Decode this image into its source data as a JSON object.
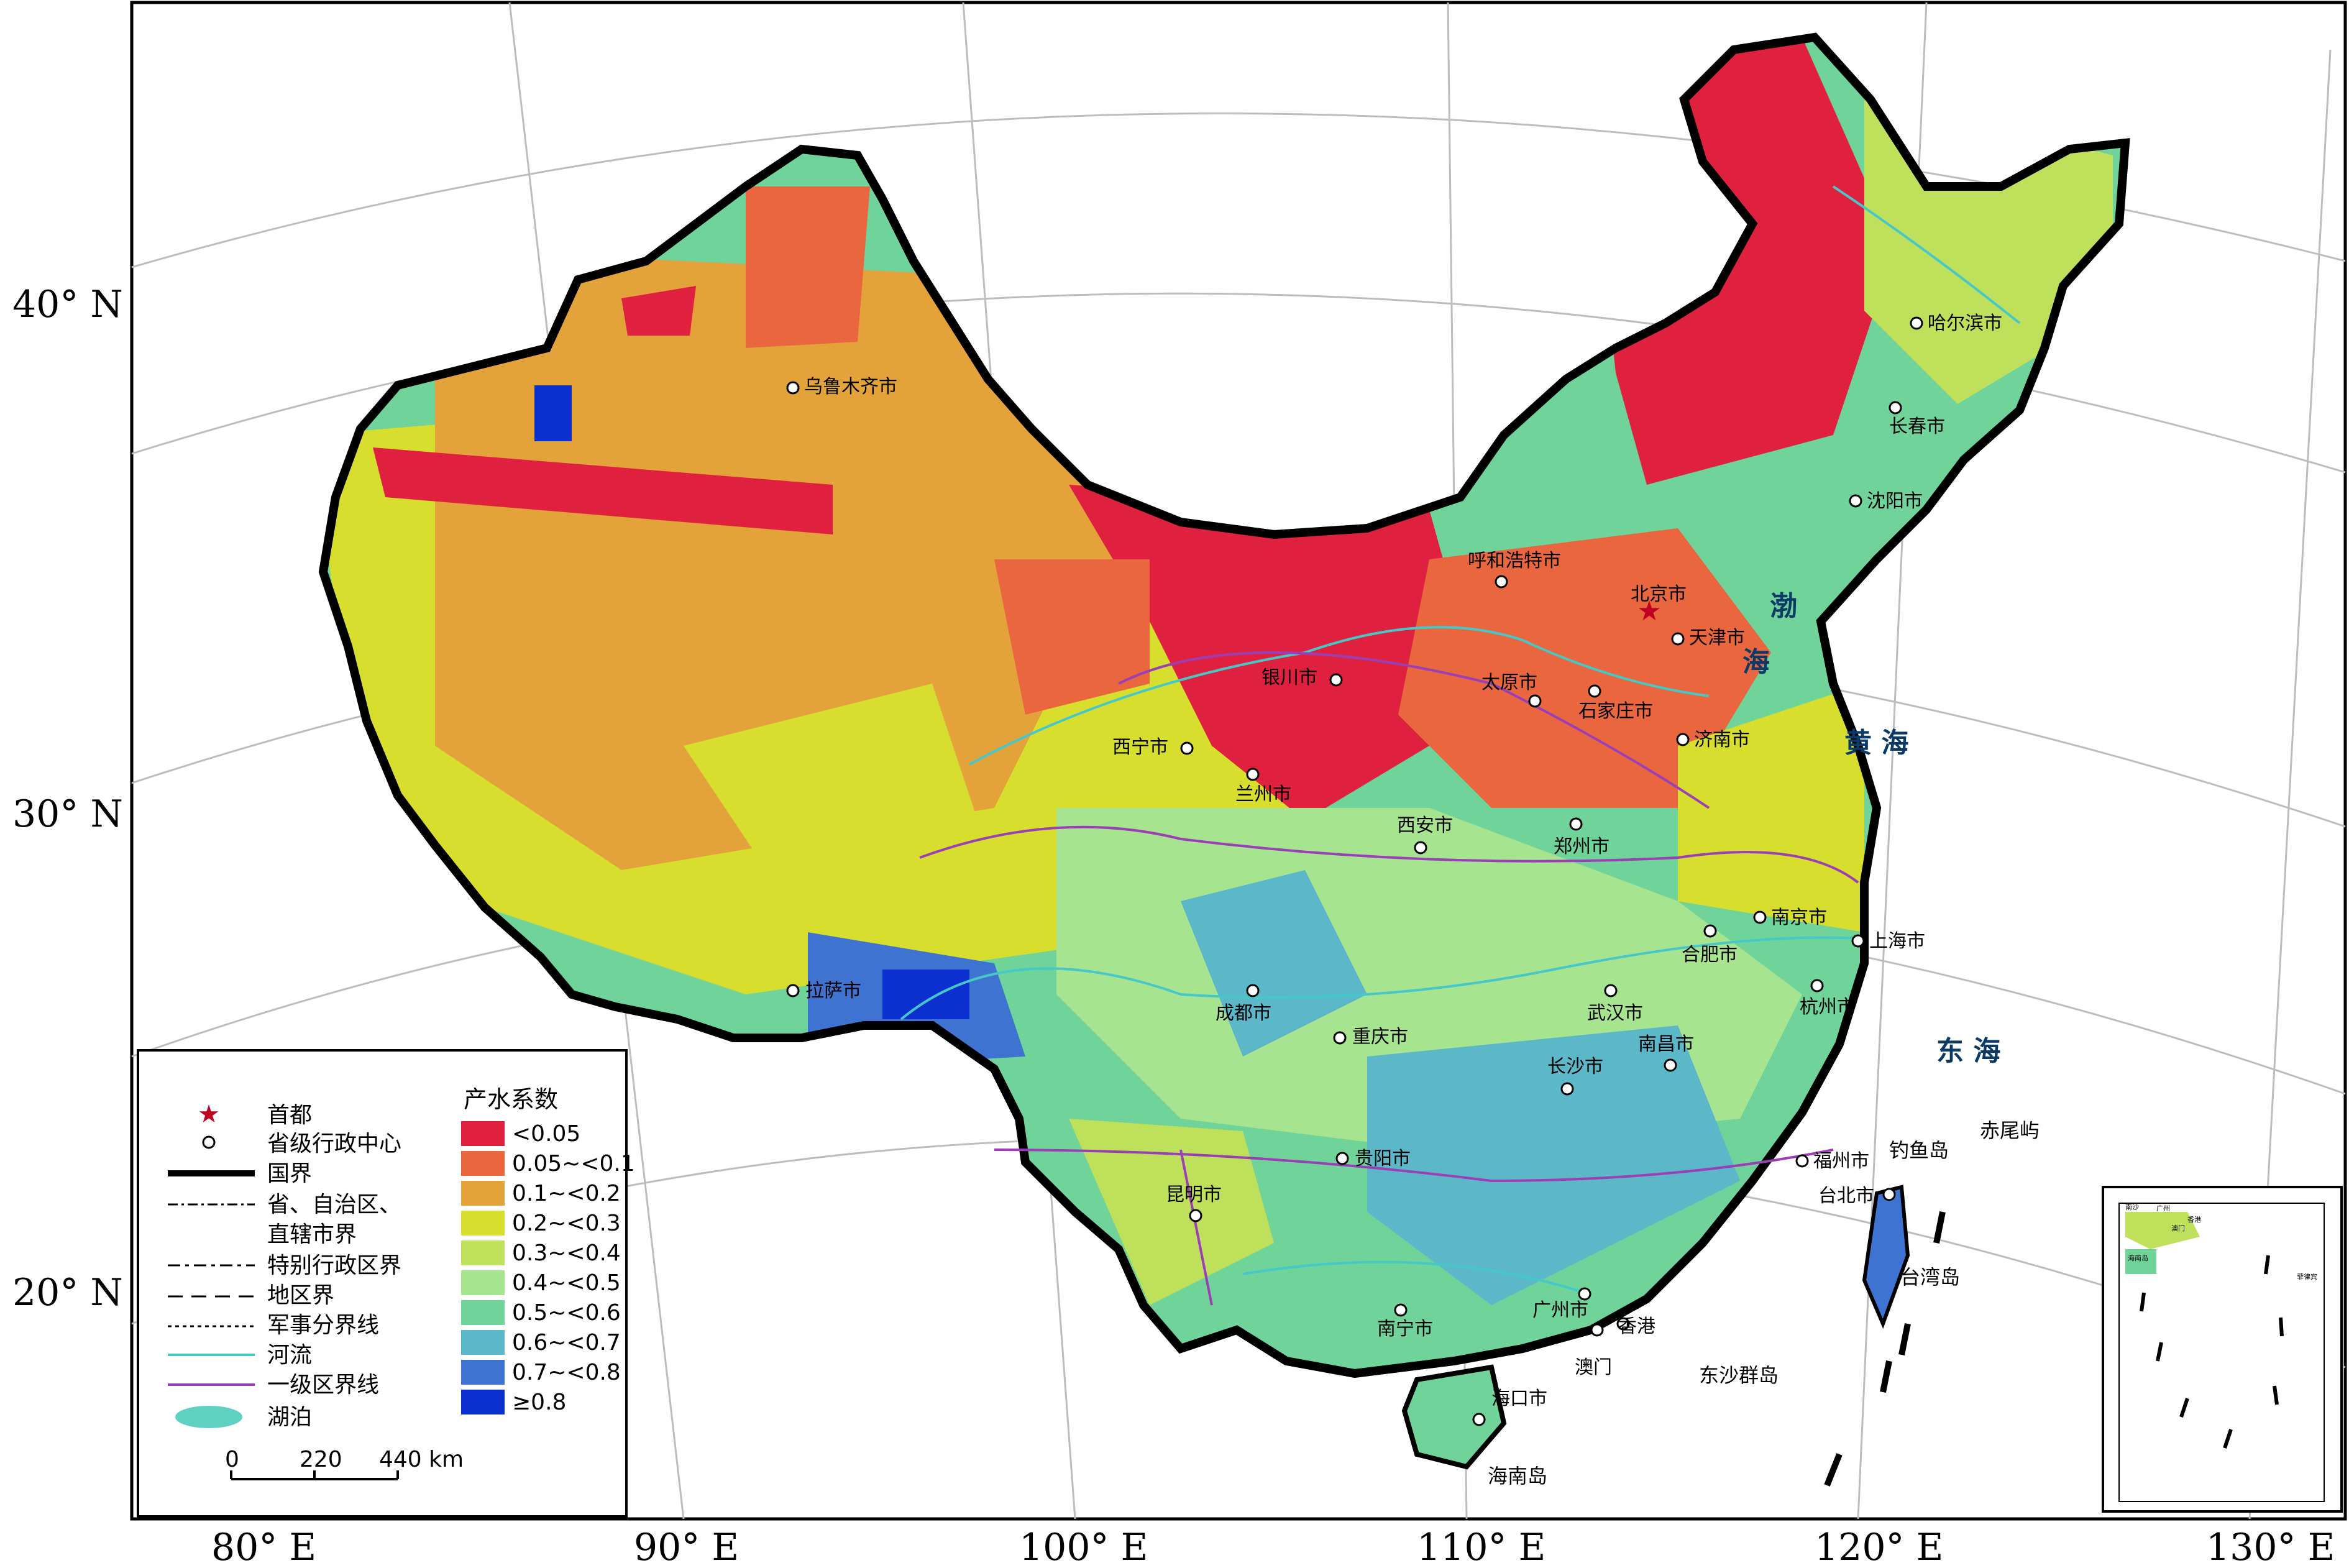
{
  "axes": {
    "lat_labels": [
      "40° N",
      "30° N",
      "20° N"
    ],
    "lon_labels": [
      "80° E",
      "90° E",
      "100° E",
      "110° E",
      "120° E",
      "130° E"
    ]
  },
  "cities": [
    {
      "id": "urumqi",
      "name": "乌鲁木齐市"
    },
    {
      "id": "harbin",
      "name": "哈尔滨市"
    },
    {
      "id": "changchun",
      "name": "长春市"
    },
    {
      "id": "shenyang",
      "name": "沈阳市"
    },
    {
      "id": "hohhot",
      "name": "呼和浩特市"
    },
    {
      "id": "beijing",
      "name": "北京市"
    },
    {
      "id": "tianjin",
      "name": "天津市"
    },
    {
      "id": "yinchuan",
      "name": "银川市"
    },
    {
      "id": "taiyuan",
      "name": "太原市"
    },
    {
      "id": "shijiazhuang",
      "name": "石家庄市"
    },
    {
      "id": "jinan",
      "name": "济南市"
    },
    {
      "id": "xining",
      "name": "西宁市"
    },
    {
      "id": "lanzhou",
      "name": "兰州市"
    },
    {
      "id": "xian",
      "name": "西安市"
    },
    {
      "id": "zhengzhou",
      "name": "郑州市"
    },
    {
      "id": "nanjing",
      "name": "南京市"
    },
    {
      "id": "shanghai",
      "name": "上海市"
    },
    {
      "id": "hefei",
      "name": "合肥市"
    },
    {
      "id": "lhasa",
      "name": "拉萨市"
    },
    {
      "id": "chengdu",
      "name": "成都市"
    },
    {
      "id": "wuhan",
      "name": "武汉市"
    },
    {
      "id": "hangzhou",
      "name": "杭州市"
    },
    {
      "id": "chongqing",
      "name": "重庆市"
    },
    {
      "id": "nanchang",
      "name": "南昌市"
    },
    {
      "id": "changsha",
      "name": "长沙市"
    },
    {
      "id": "guiyang",
      "name": "贵阳市"
    },
    {
      "id": "fuzhou",
      "name": "福州市"
    },
    {
      "id": "taipei",
      "name": "台北市"
    },
    {
      "id": "kunming",
      "name": "昆明市"
    },
    {
      "id": "nanning",
      "name": "南宁市"
    },
    {
      "id": "guangzhou",
      "name": "广州市"
    },
    {
      "id": "hongkong",
      "name": "香港"
    },
    {
      "id": "macau",
      "name": "澳门"
    },
    {
      "id": "haikou",
      "name": "海口市"
    }
  ],
  "seas": [
    {
      "id": "bohai-1",
      "name": "渤"
    },
    {
      "id": "bohai-2",
      "name": "海"
    },
    {
      "id": "huanghai",
      "name": "黄 海"
    },
    {
      "id": "donghai",
      "name": "东 海"
    }
  ],
  "islands": [
    {
      "id": "diaoyu",
      "name": "钓鱼岛"
    },
    {
      "id": "chiwei",
      "name": "赤尾屿"
    },
    {
      "id": "taiwan",
      "name": "台湾岛"
    },
    {
      "id": "dongsha",
      "name": "东沙群岛"
    },
    {
      "id": "hainan",
      "name": "海南岛"
    }
  ],
  "legend": {
    "symbols": [
      {
        "id": "capital",
        "label": "首都"
      },
      {
        "id": "provincial-center",
        "label": "省级行政中心"
      },
      {
        "id": "national-border",
        "label": "国界"
      },
      {
        "id": "provincial-border-1",
        "label": "省、自治区、"
      },
      {
        "id": "provincial-border-2",
        "label": "直辖市界"
      },
      {
        "id": "sar-border",
        "label": "特别行政区界"
      },
      {
        "id": "prefecture-border",
        "label": "地区界"
      },
      {
        "id": "military-line",
        "label": "军事分界线"
      },
      {
        "id": "river",
        "label": "河流"
      },
      {
        "id": "first-level-zone",
        "label": "一级区界线"
      },
      {
        "id": "lake",
        "label": "湖泊"
      }
    ],
    "class_title": "产水系数",
    "classes": [
      {
        "label": "<0.05",
        "color": "#e0203f"
      },
      {
        "label": "0.05~<0.1",
        "color": "#e9663f"
      },
      {
        "label": "0.1~<0.2",
        "color": "#e3a33a"
      },
      {
        "label": "0.2~<0.3",
        "color": "#d8de2e"
      },
      {
        "label": "0.3~<0.4",
        "color": "#bfe05a"
      },
      {
        "label": "0.4~<0.5",
        "color": "#a7e48f"
      },
      {
        "label": "0.5~<0.6",
        "color": "#6fd39a"
      },
      {
        "label": "0.6~<0.7",
        "color": "#5cb8c9"
      },
      {
        "label": "0.7~<0.8",
        "color": "#3f73d2"
      },
      {
        "label": "≥0.8",
        "color": "#0c2fcf"
      }
    ],
    "scale": {
      "ticks": [
        "0",
        "220",
        "440 km"
      ]
    }
  },
  "inset": {
    "labels": [
      "南沙",
      "广州",
      "香港",
      "澳门",
      "海南岛",
      "菲律宾"
    ]
  },
  "colors": {
    "border": "#000000",
    "river": "#46c8c8",
    "zone_line": "#9b3fb6",
    "lake": "#5fd1c0",
    "sea": "#ffffff"
  }
}
